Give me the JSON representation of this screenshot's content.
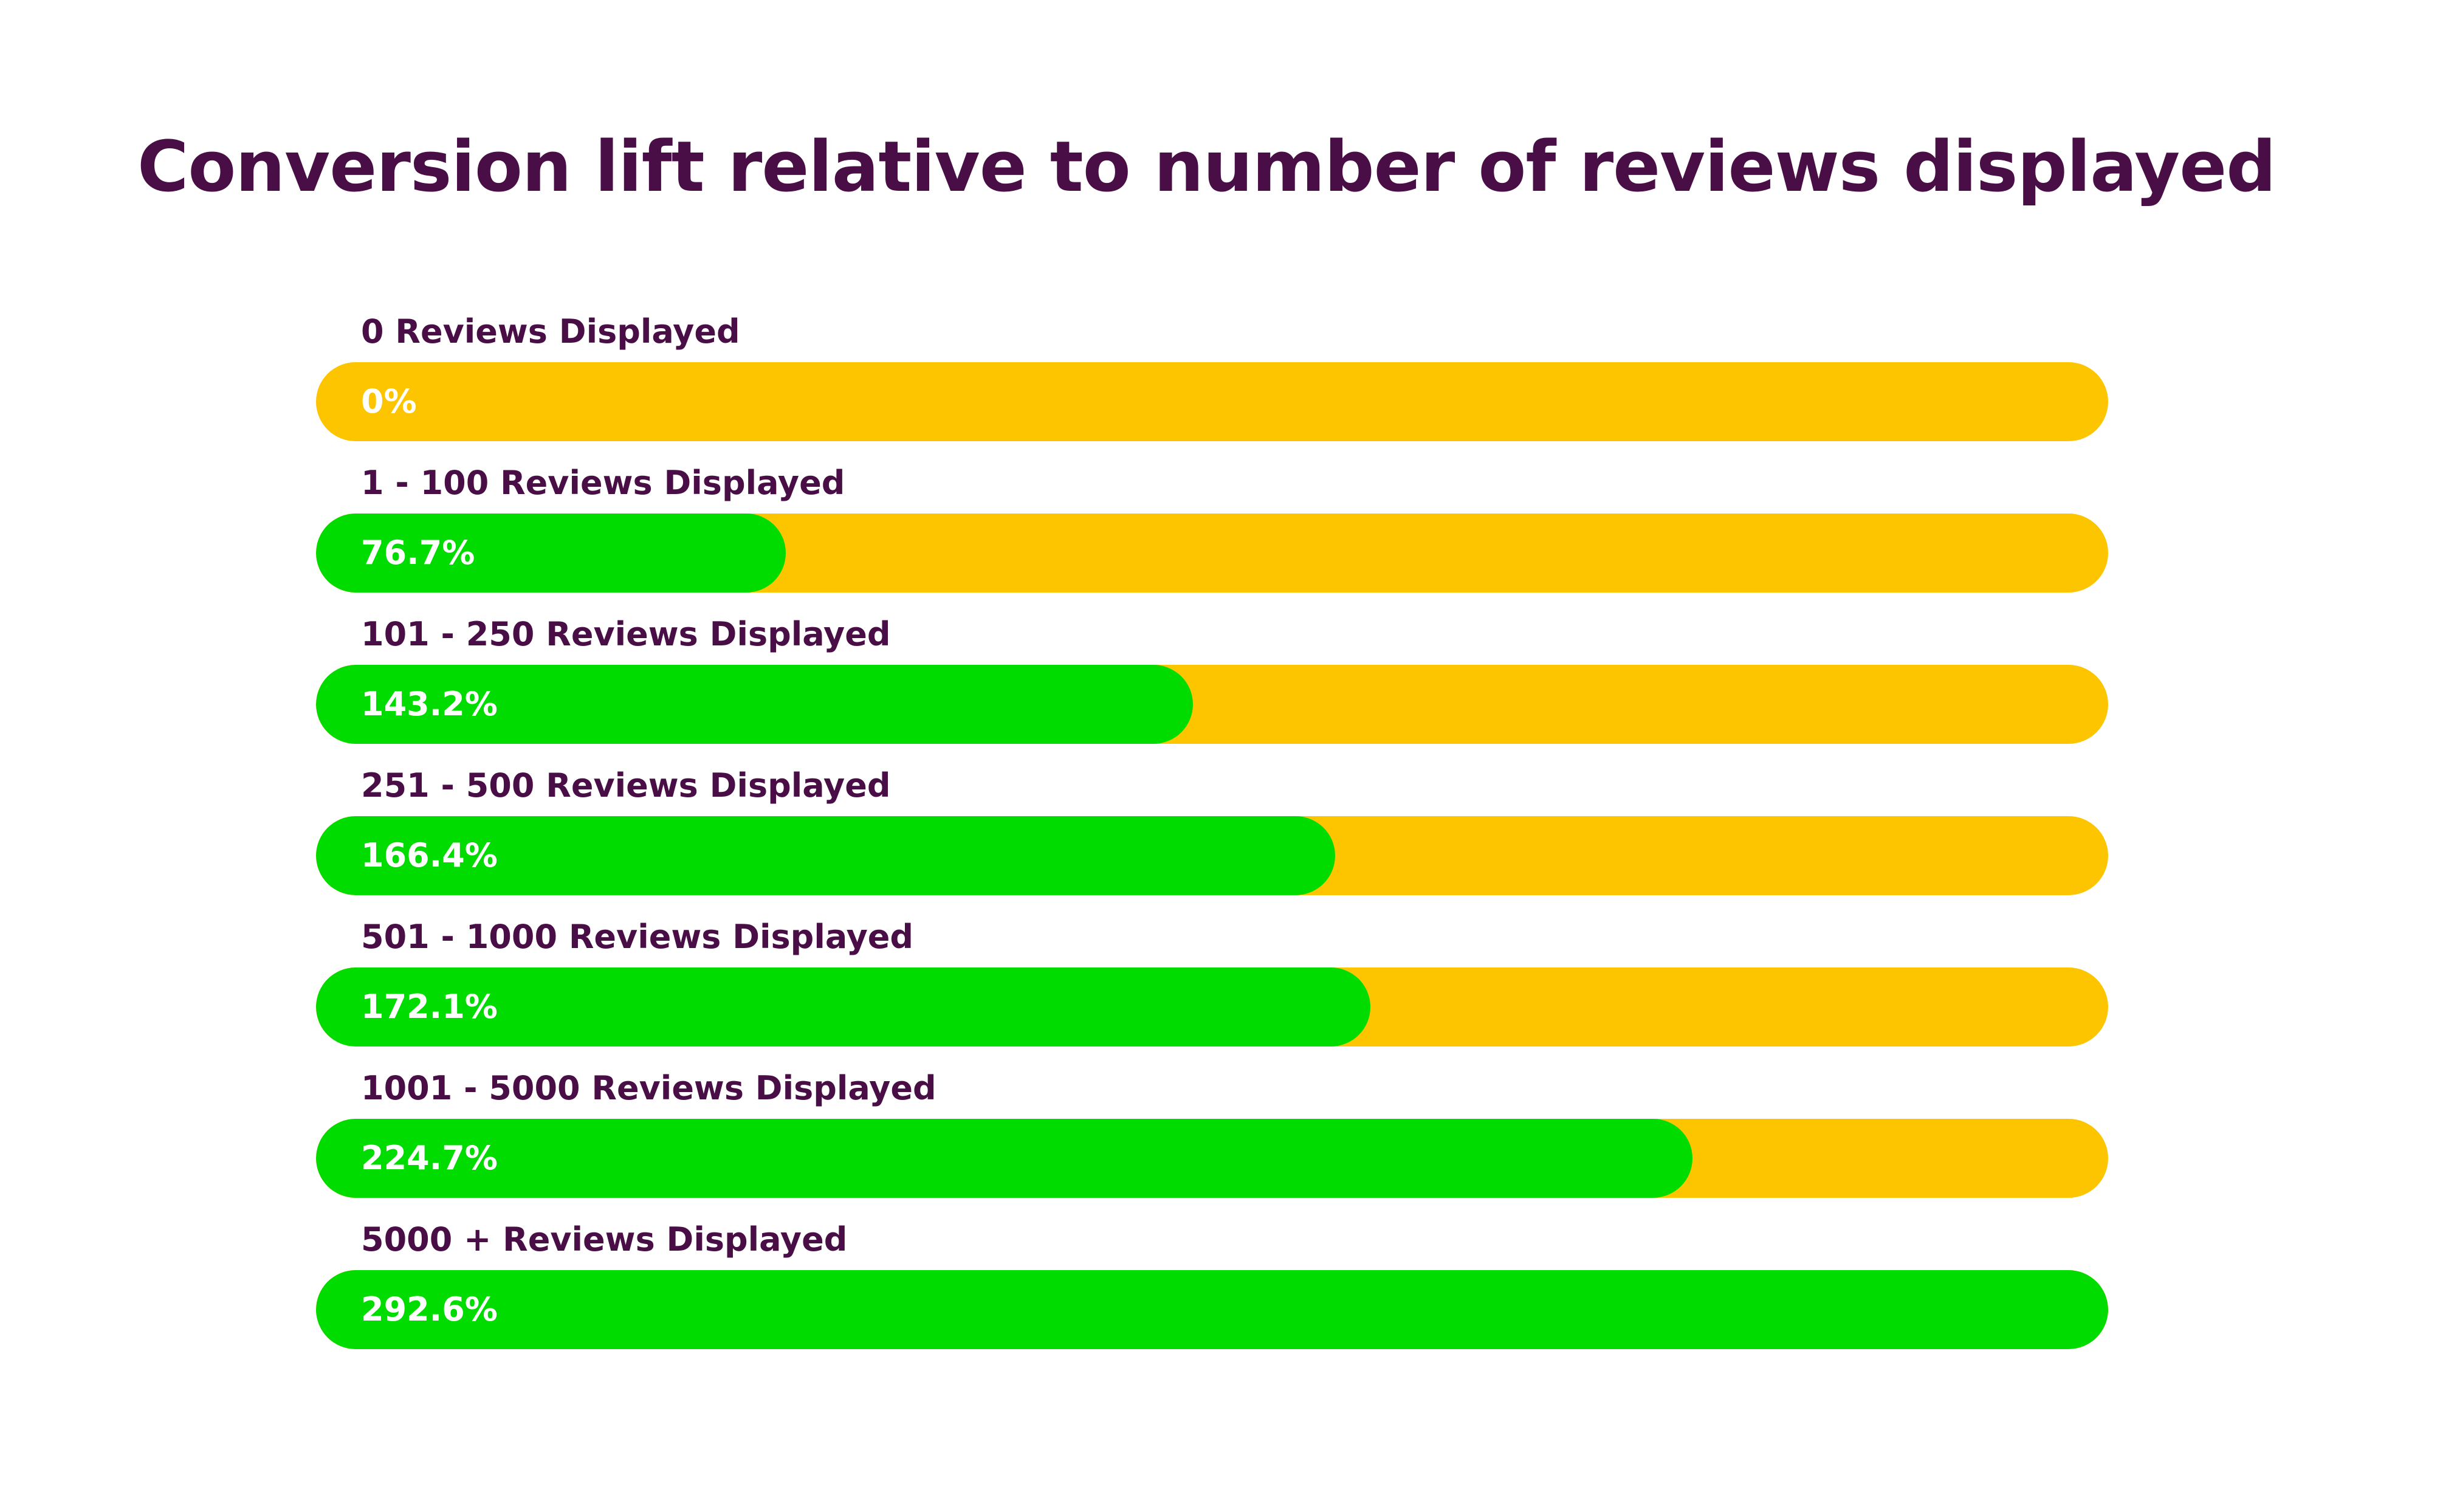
{
  "title": "Conversion lift relative to number of reviews displayed",
  "colors": {
    "title": "#4a0e47",
    "track": "#fdc400",
    "fill": "#00dc00",
    "value_text": "#ffffff"
  },
  "chart_data": {
    "type": "bar",
    "title": "Conversion lift relative to number of reviews displayed",
    "xlabel": "",
    "ylabel": "",
    "xlim": [
      0,
      292.6
    ],
    "grid": false,
    "categories": [
      "0 Reviews Displayed",
      "1 - 100 Reviews Displayed",
      "101 - 250 Reviews Displayed",
      "251 - 500 Reviews Displayed",
      "501 - 1000 Reviews Displayed",
      "1001 - 5000 Reviews Displayed",
      "5000 + Reviews Displayed"
    ],
    "values": [
      0,
      76.7,
      143.2,
      166.4,
      172.1,
      224.7,
      292.6
    ],
    "value_labels": [
      "0%",
      "76.7%",
      "143.2%",
      "166.4%",
      "172.1%",
      "224.7%",
      "292.6%"
    ]
  }
}
